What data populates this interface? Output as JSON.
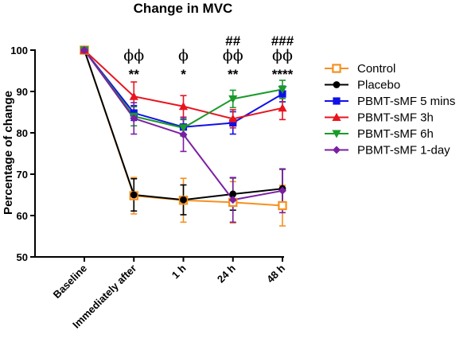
{
  "chart_data": {
    "type": "line",
    "title": "Change in MVC",
    "ylabel": "Percentage of change",
    "xlabel": "",
    "categories": [
      "Baseline",
      "Immediately after",
      "1 h",
      "24 h",
      "48 h"
    ],
    "ylim": [
      50,
      100
    ],
    "yticks": [
      50,
      60,
      70,
      80,
      90,
      100
    ],
    "grid": false,
    "legend_position": "right",
    "series": [
      {
        "name": "Control",
        "color": "#f5911e",
        "marker": "open-square",
        "values": [
          100,
          64.8,
          63.7,
          63.2,
          62.4
        ],
        "errors": [
          0,
          4.4,
          5.3,
          5.0,
          4.9
        ]
      },
      {
        "name": "Placebo",
        "color": "#000000",
        "marker": "circle",
        "values": [
          100,
          65.0,
          63.8,
          65.2,
          66.5
        ],
        "errors": [
          0,
          3.9,
          3.6,
          3.9,
          4.7
        ]
      },
      {
        "name": "PBMT-sMF 5 mins",
        "color": "#1010e8",
        "marker": "square",
        "values": [
          100,
          84.8,
          81.4,
          82.4,
          89.4
        ],
        "errors": [
          0,
          1.8,
          1.9,
          2.7,
          1.9
        ]
      },
      {
        "name": "PBMT-sMF 3h",
        "color": "#e8141e",
        "marker": "triangle-up",
        "values": [
          100,
          88.8,
          86.4,
          83.4,
          86.0
        ],
        "errors": [
          0,
          3.5,
          2.6,
          2.2,
          2.8
        ]
      },
      {
        "name": "PBMT-sMF 6h",
        "color": "#1a9a2a",
        "marker": "triangle-down",
        "values": [
          100,
          84.0,
          81.2,
          88.2,
          90.5
        ],
        "errors": [
          0,
          2.3,
          2.0,
          2.1,
          2.2
        ]
      },
      {
        "name": "PBMT-sMF 1-day",
        "color": "#7b1fa2",
        "marker": "diamond",
        "values": [
          100,
          83.5,
          79.6,
          63.8,
          66.0
        ],
        "errors": [
          0,
          3.8,
          4.1,
          5.4,
          5.3
        ]
      }
    ],
    "annotations": [
      {
        "category": "Immediately after",
        "lines": [
          "ϕϕ",
          "**"
        ]
      },
      {
        "category": "1 h",
        "lines": [
          "ϕ",
          "*"
        ]
      },
      {
        "category": "24 h",
        "lines": [
          "##",
          "ϕϕ",
          "**"
        ]
      },
      {
        "category": "48 h",
        "lines": [
          "###",
          "ϕϕ",
          "****"
        ]
      }
    ]
  }
}
